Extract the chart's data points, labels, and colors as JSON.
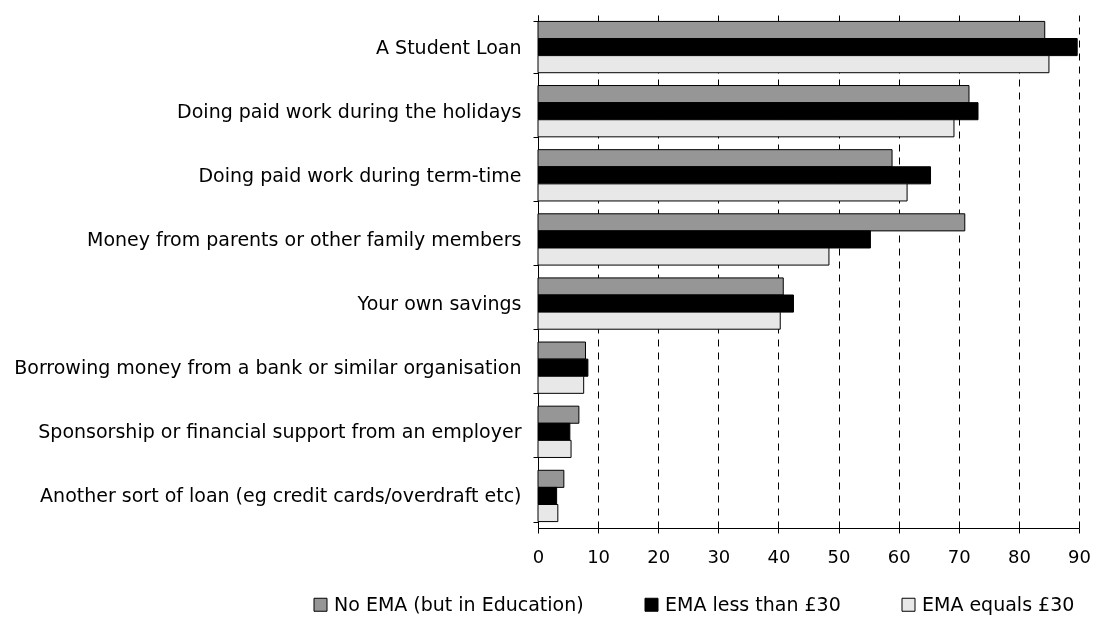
{
  "chart_data": {
    "type": "bar",
    "orientation": "horizontal",
    "categories": [
      "A Student Loan",
      "Doing paid work during the holidays",
      "Doing paid work during term-time",
      "Money from parents or other family members",
      "Your own savings",
      "Borrowing money from a bank or similar organisation",
      "Sponsorship or financial support from an employer",
      "Another sort of loan (eg credit cards/overdraft etc)"
    ],
    "series": [
      {
        "name": "No EMA (but in Education)",
        "color": "#969696",
        "values": [
          84.3,
          71.7,
          58.9,
          71.0,
          40.8,
          7.9,
          6.8,
          4.3
        ]
      },
      {
        "name": "EMA less than £30",
        "color": "#000000",
        "values": [
          89.7,
          73.2,
          65.3,
          55.3,
          42.5,
          8.3,
          5.3,
          3.1
        ]
      },
      {
        "name": "EMA equals £30",
        "color": "#e8e8e8",
        "values": [
          85.0,
          69.2,
          61.4,
          48.4,
          40.3,
          7.6,
          5.5,
          3.3
        ]
      }
    ],
    "xlim": [
      0,
      90
    ],
    "xticks": [
      0,
      10,
      20,
      30,
      40,
      50,
      60,
      70,
      80,
      90
    ],
    "grid": "x",
    "legend": "bottom"
  }
}
